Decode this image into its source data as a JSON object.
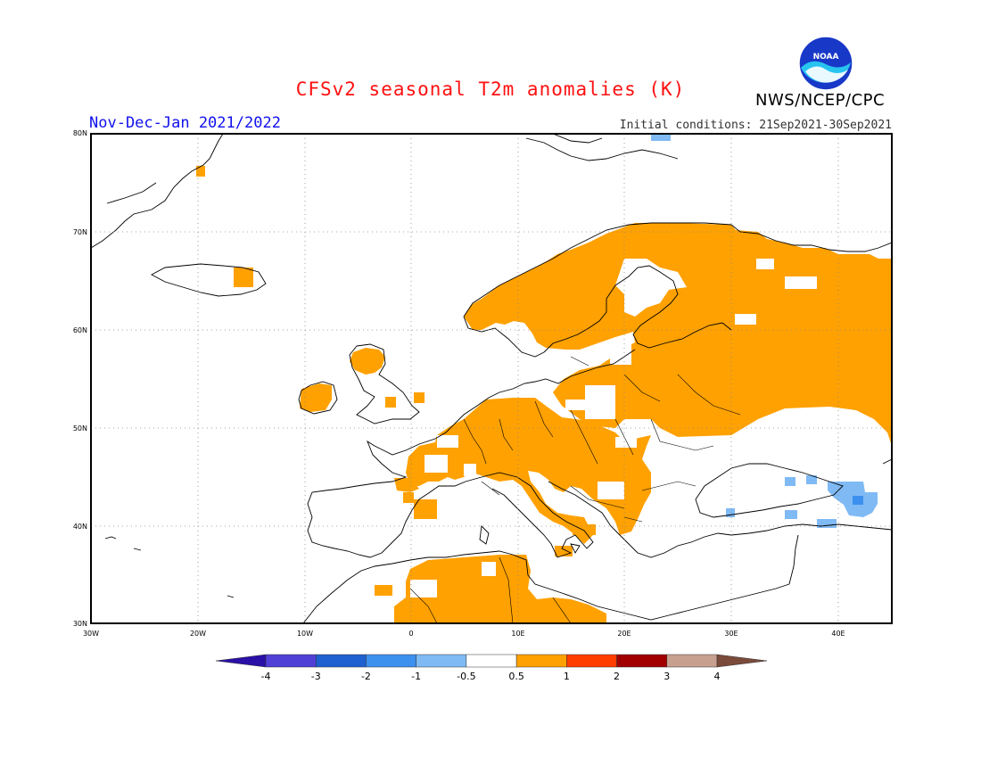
{
  "header": {
    "title": "CFSv2 seasonal T2m anomalies (K)",
    "agency": "NWS/NCEP/CPC",
    "logo_text": "NOAA",
    "season": "Nov-Dec-Jan 2021/2022",
    "initial_conditions": "Initial conditions: 21Sep2021-30Sep2021"
  },
  "map": {
    "projection": "lat-lon",
    "lon_range": [
      -30,
      45
    ],
    "lat_range": [
      30,
      80
    ],
    "lat_ticks": [
      "30N",
      "40N",
      "50N",
      "60N",
      "70N",
      "80N"
    ],
    "lon_ticks": [
      "30W",
      "20W",
      "10W",
      "0",
      "10E",
      "20E",
      "30E",
      "40E"
    ],
    "grid": "dotted",
    "colors": {
      "anomaly_positive_0_5_to_1": "#ffa100",
      "anomaly_negative_0_5_to_1": "#7fbaf5",
      "coastline": "#000000"
    }
  },
  "colorbar": {
    "labels": [
      "-4",
      "-3",
      "-2",
      "-1",
      "-0.5",
      "0.5",
      "1",
      "2",
      "3",
      "4"
    ],
    "colors": [
      "#2a10a6",
      "#5040d6",
      "#1f60d0",
      "#3c90ee",
      "#7fbaf5",
      "#ffffff",
      "#ffa100",
      "#ff3d00",
      "#a00000",
      "#c8a090",
      "#7a4a3a"
    ]
  }
}
